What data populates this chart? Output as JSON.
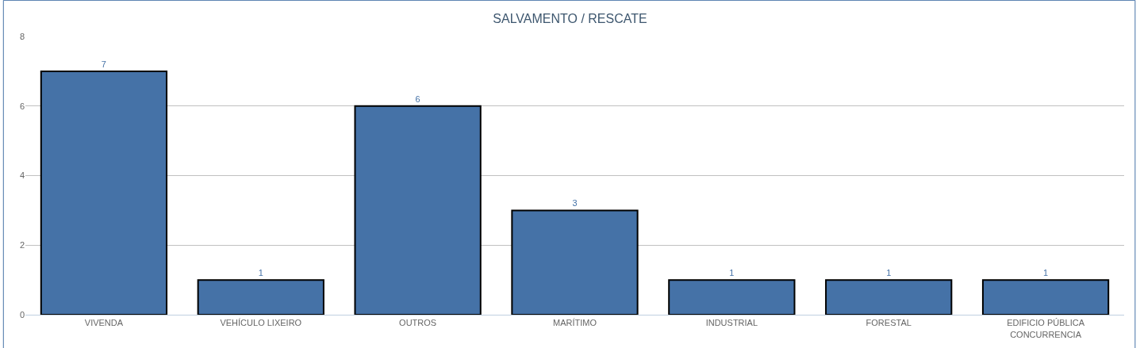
{
  "chart_data": {
    "type": "bar",
    "title": "SALVAMENTO / RESCATE",
    "categories": [
      "VIVENDA",
      "VEHÍCULO LIXEIRO",
      "OUTROS",
      "MARÍTIMO",
      "INDUSTRIAL",
      "FORESTAL",
      "EDIFICIO PÚBLICA CONCURRENCIA"
    ],
    "values": [
      7,
      1,
      6,
      3,
      1,
      1,
      1
    ],
    "color": "#4572a7",
    "ylim": [
      0,
      8
    ],
    "yticks": [
      0,
      2,
      4,
      6,
      8
    ],
    "grid": "y",
    "data_labels": true,
    "legend": false
  }
}
